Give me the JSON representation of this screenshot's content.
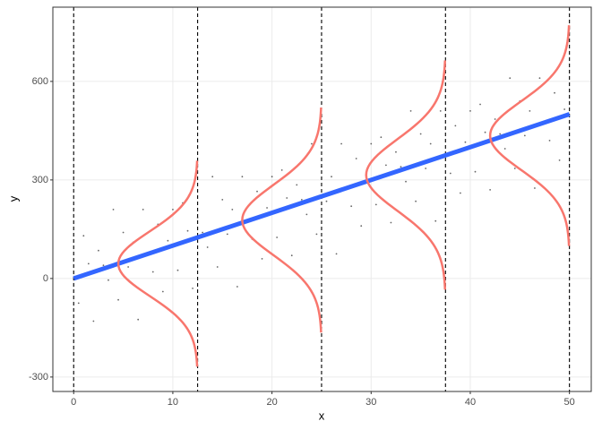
{
  "chart_data": {
    "type": "scatter",
    "x_label": "x",
    "y_label": "y",
    "xlim": [
      -2.1,
      52.2
    ],
    "ylim": [
      -344,
      826
    ],
    "xticks": [
      0,
      10,
      20,
      30,
      40,
      50
    ],
    "yticks": [
      -300,
      0,
      300,
      600
    ],
    "grid": true,
    "point_color": "#000000",
    "x": [
      0.5,
      1,
      1.5,
      2,
      2.5,
      3,
      3.5,
      4,
      4.5,
      5,
      5.5,
      6,
      6.5,
      7,
      7.5,
      8,
      8.5,
      9,
      9.5,
      10,
      10.5,
      11,
      11.5,
      12,
      12.5,
      13,
      13.5,
      14,
      14.5,
      15,
      15.5,
      16,
      16.5,
      17,
      17.5,
      18,
      18.5,
      19,
      19.5,
      20,
      20.5,
      21,
      21.5,
      22,
      22.5,
      23,
      23.5,
      24,
      24.5,
      25,
      25.5,
      26,
      26.5,
      27,
      27.5,
      28,
      28.5,
      29,
      29.5,
      30,
      30.5,
      31,
      31.5,
      32,
      32.5,
      33,
      33.5,
      34,
      34.5,
      35,
      35.5,
      36,
      36.5,
      37,
      37.5,
      38,
      38.5,
      39,
      39.5,
      40,
      40.5,
      41,
      41.5,
      42,
      42.5,
      43,
      43.5,
      44,
      44.5,
      45,
      45.5,
      46,
      46.5,
      47,
      47.5,
      48,
      48.5,
      49,
      49.5
    ],
    "values": [
      -75,
      130,
      45,
      -130,
      85,
      40,
      -5,
      210,
      -65,
      140,
      35,
      110,
      -125,
      210,
      75,
      20,
      165,
      -40,
      115,
      210,
      25,
      230,
      145,
      -30,
      185,
      140,
      95,
      310,
      35,
      240,
      135,
      210,
      -25,
      310,
      175,
      120,
      265,
      60,
      215,
      310,
      125,
      330,
      245,
      70,
      285,
      240,
      195,
      410,
      135,
      340,
      235,
      310,
      75,
      410,
      275,
      220,
      365,
      160,
      315,
      410,
      225,
      430,
      345,
      170,
      385,
      340,
      295,
      510,
      235,
      440,
      335,
      410,
      175,
      510,
      375,
      320,
      465,
      260,
      415,
      510,
      325,
      530,
      445,
      270,
      485,
      440,
      395,
      610,
      335,
      540,
      435,
      510,
      275,
      610,
      475,
      420,
      565,
      360,
      515
    ],
    "fit_line": {
      "color": "#3366FF",
      "x": [
        0,
        50
      ],
      "y": [
        0,
        500
      ]
    },
    "vlines": [
      0,
      12.5,
      25,
      37.5,
      50
    ],
    "curve_color": "#F8766D",
    "curve_peak_width": 8,
    "curve_extent_sd": 3.2,
    "curves": [
      {
        "x": 12.5,
        "mean": 45,
        "sd": 98
      },
      {
        "x": 25,
        "mean": 178,
        "sd": 107
      },
      {
        "x": 37.5,
        "mean": 315,
        "sd": 109
      },
      {
        "x": 50,
        "mean": 435,
        "sd": 105
      }
    ]
  }
}
